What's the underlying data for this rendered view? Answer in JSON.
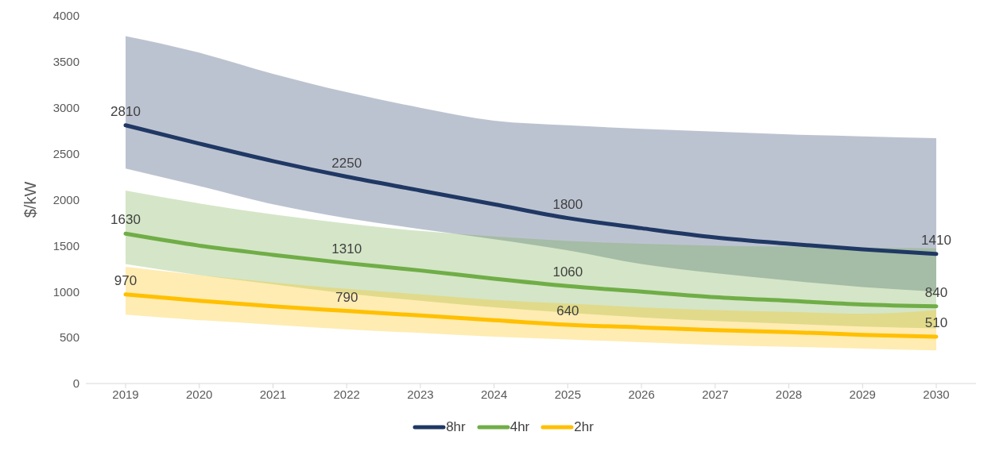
{
  "chart_data": {
    "type": "line",
    "ylabel": "$/kW",
    "categories": [
      "2019",
      "2020",
      "2021",
      "2022",
      "2023",
      "2024",
      "2025",
      "2026",
      "2027",
      "2028",
      "2029",
      "2030"
    ],
    "ylim": [
      0,
      4000
    ],
    "yticks": [
      0,
      500,
      1000,
      1500,
      2000,
      2500,
      3000,
      3500,
      4000
    ],
    "grid": false,
    "legend": "bottom",
    "marker": "none",
    "line_style": "solid",
    "series": [
      {
        "name": "8hr",
        "color": "#203864",
        "values": [
          2810,
          2610,
          2420,
          2250,
          2100,
          1950,
          1800,
          1690,
          1590,
          1520,
          1460,
          1410
        ],
        "lower": [
          2340,
          2150,
          1950,
          1800,
          1680,
          1570,
          1450,
          1300,
          1200,
          1120,
          1050,
          1000
        ],
        "upper": [
          3780,
          3600,
          3370,
          3170,
          3000,
          2860,
          2810,
          2770,
          2740,
          2710,
          2690,
          2670
        ],
        "value_labels": [
          "2810",
          null,
          null,
          "2250",
          null,
          null,
          "1800",
          null,
          null,
          null,
          null,
          "1410"
        ]
      },
      {
        "name": "4hr",
        "color": "#70ad47",
        "values": [
          1630,
          1500,
          1400,
          1310,
          1230,
          1140,
          1060,
          1000,
          940,
          900,
          860,
          840
        ],
        "lower": [
          1300,
          1180,
          1080,
          980,
          900,
          830,
          770,
          720,
          680,
          650,
          620,
          600
        ],
        "upper": [
          2100,
          1960,
          1840,
          1740,
          1660,
          1600,
          1550,
          1520,
          1500,
          1490,
          1480,
          1470
        ],
        "value_labels": [
          "1630",
          null,
          null,
          "1310",
          null,
          null,
          "1060",
          null,
          null,
          null,
          null,
          "840"
        ]
      },
      {
        "name": "2hr",
        "color": "#ffc000",
        "values": [
          970,
          900,
          840,
          790,
          740,
          690,
          640,
          610,
          580,
          560,
          530,
          510
        ],
        "lower": [
          750,
          690,
          640,
          590,
          550,
          510,
          480,
          450,
          420,
          400,
          380,
          360
        ],
        "upper": [
          1270,
          1180,
          1100,
          1030,
          970,
          910,
          870,
          830,
          800,
          780,
          760,
          800
        ],
        "value_labels": [
          "970",
          null,
          null,
          "790",
          null,
          null,
          "640",
          null,
          null,
          null,
          null,
          "510"
        ]
      }
    ]
  }
}
